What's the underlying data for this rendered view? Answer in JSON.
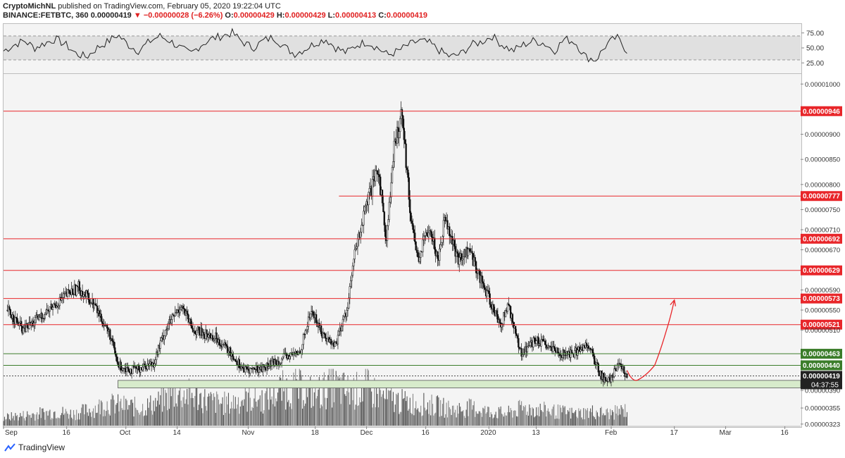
{
  "header": {
    "author": "CryptoMichNL",
    "published_text": "published on TradingView.com, February 05, 2020 19:22:04 UTC",
    "symbol": "BINANCE:FETBTC, 360",
    "last": "0.00000419",
    "change": "▼ −0.00000028 (−6.26%)",
    "open_label": "O:",
    "open": "0.00000429",
    "high_label": "H:",
    "high": "0.00000429",
    "low_label": "L:",
    "low": "0.00000413",
    "close_label": "C:",
    "close": "0.00000419"
  },
  "brand": {
    "name": "TradingView",
    "icon": "tradingview-logo-icon"
  },
  "colors": {
    "resistance": "#e8262a",
    "support": "#3b7d2a",
    "support_zone": "#d7ebcb",
    "candles": "#111111",
    "volume": "#4a4a4a",
    "arrow": "#e8262a"
  },
  "chart_data": [
    {
      "type": "line",
      "name": "RSI",
      "ylim": [
        10,
        90
      ],
      "tick_labels": [
        "75.00",
        "50.00",
        "25.00"
      ],
      "bands": [
        30,
        70
      ],
      "x_range": [
        "2019-08-31",
        "2020-02-05"
      ],
      "values_sample": [
        45,
        55,
        62,
        50,
        58,
        65,
        55,
        40,
        35,
        50,
        60,
        72,
        55,
        45,
        60,
        70,
        62,
        50,
        40,
        55,
        65,
        70,
        75,
        60,
        50,
        62,
        68,
        52,
        40,
        48,
        58,
        65,
        50,
        42,
        55,
        60,
        50,
        38,
        45,
        55,
        62,
        58,
        45,
        35,
        40,
        55,
        60,
        70,
        55,
        45,
        55,
        62,
        58,
        45,
        65,
        60,
        35,
        30,
        55,
        68,
        45
      ]
    },
    {
      "type": "candlestick",
      "name": "FETBTC 360",
      "ylim": [
        3.2e-06,
        1.02e-05
      ],
      "tick_labels": [
        "0.00001000",
        "0.00000900",
        "0.00000850",
        "0.00000800",
        "0.00000750",
        "0.00000710",
        "0.00000670",
        "0.00000590",
        "0.00000550",
        "0.00000510",
        "0.00000390",
        "0.00000355",
        "0.00000323"
      ],
      "x_tick_labels": [
        "Sep",
        "16",
        "Oct",
        "14",
        "Nov",
        "18",
        "Dec",
        "16",
        "2020",
        "13",
        "Feb",
        "17",
        "Mar",
        "16"
      ],
      "x_range": [
        "2019-08-31",
        "2020-03-20"
      ],
      "close_series": [
        [
          "2019-09-01",
          5.5
        ],
        [
          "2019-09-05",
          5.1
        ],
        [
          "2019-09-10",
          5.4
        ],
        [
          "2019-09-16",
          5.8
        ],
        [
          "2019-09-19",
          5.95
        ],
        [
          "2019-09-23",
          5.6
        ],
        [
          "2019-09-27",
          5.0
        ],
        [
          "2019-09-29",
          4.4
        ],
        [
          "2019-10-03",
          4.3
        ],
        [
          "2019-10-08",
          4.45
        ],
        [
          "2019-10-11",
          5.1
        ],
        [
          "2019-10-15",
          5.6
        ],
        [
          "2019-10-18",
          5.1
        ],
        [
          "2019-10-24",
          4.95
        ],
        [
          "2019-10-28",
          4.6
        ],
        [
          "2019-10-31",
          4.3
        ],
        [
          "2019-11-05",
          4.35
        ],
        [
          "2019-11-10",
          4.55
        ],
        [
          "2019-11-14",
          4.65
        ],
        [
          "2019-11-17",
          5.5
        ],
        [
          "2019-11-20",
          5.0
        ],
        [
          "2019-11-23",
          4.8
        ],
        [
          "2019-11-26",
          5.5
        ],
        [
          "2019-11-28",
          6.6
        ],
        [
          "2019-12-01",
          7.6
        ],
        [
          "2019-12-04",
          8.3
        ],
        [
          "2019-12-06",
          6.9
        ],
        [
          "2019-12-08",
          8.7
        ],
        [
          "2019-12-10",
          9.5
        ],
        [
          "2019-12-12",
          7.5
        ],
        [
          "2019-12-14",
          6.5
        ],
        [
          "2019-12-17",
          7.2
        ],
        [
          "2019-12-19",
          6.5
        ],
        [
          "2019-12-21",
          7.4
        ],
        [
          "2019-12-24",
          6.5
        ],
        [
          "2019-12-27",
          6.7
        ],
        [
          "2019-12-31",
          5.9
        ],
        [
          "2020-01-04",
          5.2
        ],
        [
          "2020-01-06",
          5.6
        ],
        [
          "2020-01-09",
          4.65
        ],
        [
          "2020-01-13",
          4.9
        ],
        [
          "2020-01-17",
          4.7
        ],
        [
          "2020-01-21",
          4.6
        ],
        [
          "2020-01-24",
          4.7
        ],
        [
          "2020-01-26",
          4.85
        ],
        [
          "2020-01-29",
          4.25
        ],
        [
          "2020-01-31",
          4.05
        ],
        [
          "2020-02-03",
          4.4
        ],
        [
          "2020-02-05",
          4.19
        ]
      ],
      "close_series_unit": "1e-6 BTC",
      "horizontal_levels": [
        {
          "price": "0.00000946",
          "kind": "resistance",
          "from": "2019-08-31"
        },
        {
          "price": "0.00000777",
          "kind": "resistance",
          "from": "2019-11-24"
        },
        {
          "price": "0.00000692",
          "kind": "resistance",
          "from": "2019-08-31"
        },
        {
          "price": "0.00000629",
          "kind": "resistance",
          "from": "2019-08-31"
        },
        {
          "price": "0.00000573",
          "kind": "resistance",
          "from": "2019-08-31"
        },
        {
          "price": "0.00000521",
          "kind": "resistance",
          "from": "2019-08-31"
        },
        {
          "price": "0.00000463",
          "kind": "support",
          "from": "2019-08-31"
        },
        {
          "price": "0.00000440",
          "kind": "support",
          "from": "2019-08-31"
        }
      ],
      "support_zone": {
        "from_price": 3.95e-06,
        "to_price": 4.1e-06,
        "from": "2019-09-29"
      },
      "last_price": {
        "value": "0.00000419",
        "countdown": "04:37:55"
      },
      "projection_arrow": {
        "path": [
          [
            "2020-02-05",
            4.3
          ],
          [
            "2020-02-08",
            4.12
          ],
          [
            "2020-02-12",
            4.4
          ],
          [
            "2020-02-15",
            5.1
          ],
          [
            "2020-02-17",
            5.7
          ]
        ]
      },
      "volume": {
        "relative_sample": [
          0.2,
          0.25,
          0.3,
          0.35,
          0.3,
          0.4,
          0.55,
          0.5,
          0.45,
          0.6,
          0.85,
          0.75,
          0.6,
          0.55,
          0.7,
          0.65,
          0.9,
          0.95,
          0.8,
          1.0,
          0.85,
          0.95,
          0.7,
          0.6,
          0.55,
          0.5,
          0.4,
          0.45,
          0.35,
          0.3,
          0.45,
          0.4,
          0.35,
          0.3,
          0.35,
          0.3,
          0.4
        ]
      }
    }
  ]
}
